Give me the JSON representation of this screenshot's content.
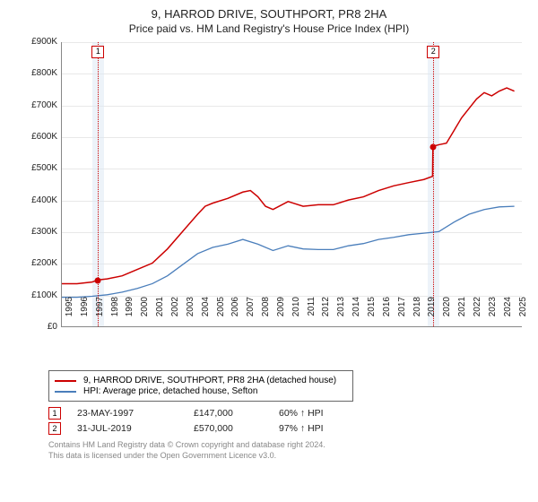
{
  "title_line1": "9, HARROD DRIVE, SOUTHPORT, PR8 2HA",
  "title_line2": "Price paid vs. HM Land Registry's House Price Index (HPI)",
  "chart": {
    "type": "line",
    "x_domain": [
      1995,
      2025.5
    ],
    "y_domain": [
      0,
      900000
    ],
    "y_ticks": [
      0,
      100000,
      200000,
      300000,
      400000,
      500000,
      600000,
      700000,
      800000,
      900000
    ],
    "y_tick_labels": [
      "£0",
      "£100K",
      "£200K",
      "£300K",
      "£400K",
      "£500K",
      "£600K",
      "£700K",
      "£800K",
      "£900K"
    ],
    "x_ticks": [
      1995,
      1996,
      1997,
      1998,
      1999,
      2000,
      2001,
      2002,
      2003,
      2004,
      2005,
      2006,
      2007,
      2008,
      2009,
      2010,
      2011,
      2012,
      2013,
      2014,
      2015,
      2016,
      2017,
      2018,
      2019,
      2020,
      2021,
      2022,
      2023,
      2024,
      2025
    ],
    "grid_color": "#e8e8e8",
    "background_color": "#ffffff",
    "series_red": {
      "label": "9, HARROD DRIVE, SOUTHPORT, PR8 2HA (detached house)",
      "color": "#cc0000",
      "width": 1.5,
      "points": [
        [
          1995,
          135000
        ],
        [
          1996,
          135000
        ],
        [
          1997,
          140000
        ],
        [
          1997.4,
          147000
        ],
        [
          1998,
          150000
        ],
        [
          1999,
          160000
        ],
        [
          2000,
          180000
        ],
        [
          2001,
          200000
        ],
        [
          2002,
          245000
        ],
        [
          2003,
          300000
        ],
        [
          2004,
          355000
        ],
        [
          2004.5,
          380000
        ],
        [
          2005,
          390000
        ],
        [
          2006,
          405000
        ],
        [
          2007,
          425000
        ],
        [
          2007.5,
          430000
        ],
        [
          2008,
          410000
        ],
        [
          2008.5,
          380000
        ],
        [
          2009,
          370000
        ],
        [
          2010,
          395000
        ],
        [
          2011,
          380000
        ],
        [
          2012,
          385000
        ],
        [
          2013,
          385000
        ],
        [
          2014,
          400000
        ],
        [
          2015,
          410000
        ],
        [
          2016,
          430000
        ],
        [
          2017,
          445000
        ],
        [
          2018,
          455000
        ],
        [
          2019,
          465000
        ],
        [
          2019.58,
          475000
        ],
        [
          2019.6,
          570000
        ],
        [
          2020,
          575000
        ],
        [
          2020.5,
          580000
        ],
        [
          2021,
          620000
        ],
        [
          2021.5,
          660000
        ],
        [
          2022,
          690000
        ],
        [
          2022.5,
          720000
        ],
        [
          2023,
          740000
        ],
        [
          2023.5,
          730000
        ],
        [
          2024,
          745000
        ],
        [
          2024.5,
          755000
        ],
        [
          2025,
          745000
        ]
      ]
    },
    "series_blue": {
      "label": "HPI: Average price, detached house, Sefton",
      "color": "#4a7ebb",
      "width": 1.3,
      "points": [
        [
          1995,
          92000
        ],
        [
          1996,
          92000
        ],
        [
          1997,
          95000
        ],
        [
          1998,
          100000
        ],
        [
          1999,
          108000
        ],
        [
          2000,
          120000
        ],
        [
          2001,
          135000
        ],
        [
          2002,
          160000
        ],
        [
          2003,
          195000
        ],
        [
          2004,
          230000
        ],
        [
          2005,
          250000
        ],
        [
          2006,
          260000
        ],
        [
          2007,
          275000
        ],
        [
          2008,
          260000
        ],
        [
          2009,
          240000
        ],
        [
          2010,
          255000
        ],
        [
          2011,
          245000
        ],
        [
          2012,
          243000
        ],
        [
          2013,
          243000
        ],
        [
          2014,
          255000
        ],
        [
          2015,
          262000
        ],
        [
          2016,
          275000
        ],
        [
          2017,
          282000
        ],
        [
          2018,
          290000
        ],
        [
          2019,
          295000
        ],
        [
          2020,
          300000
        ],
        [
          2021,
          330000
        ],
        [
          2022,
          355000
        ],
        [
          2023,
          370000
        ],
        [
          2024,
          378000
        ],
        [
          2025,
          380000
        ]
      ]
    },
    "shade_color": "#dbe8f4",
    "shade_ranges": [
      [
        1997.0,
        1997.8
      ],
      [
        2019.2,
        2020.0
      ]
    ],
    "sale_markers": [
      {
        "num": "1",
        "x": 1997.4,
        "y": 147000,
        "color": "#cc0000"
      },
      {
        "num": "2",
        "x": 2019.58,
        "y": 570000,
        "color": "#cc0000"
      }
    ]
  },
  "legend": {
    "rows": [
      {
        "color": "#cc0000",
        "text": "9, HARROD DRIVE, SOUTHPORT, PR8 2HA (detached house)"
      },
      {
        "color": "#4a7ebb",
        "text": "HPI: Average price, detached house, Sefton"
      }
    ]
  },
  "sales": [
    {
      "num": "1",
      "color": "#cc0000",
      "date": "23-MAY-1997",
      "price": "£147,000",
      "pct": "60% ↑ HPI"
    },
    {
      "num": "2",
      "color": "#cc0000",
      "date": "31-JUL-2019",
      "price": "£570,000",
      "pct": "97% ↑ HPI"
    }
  ],
  "footer": {
    "line1": "Contains HM Land Registry data © Crown copyright and database right 2024.",
    "line2": "This data is licensed under the Open Government Licence v3.0."
  }
}
